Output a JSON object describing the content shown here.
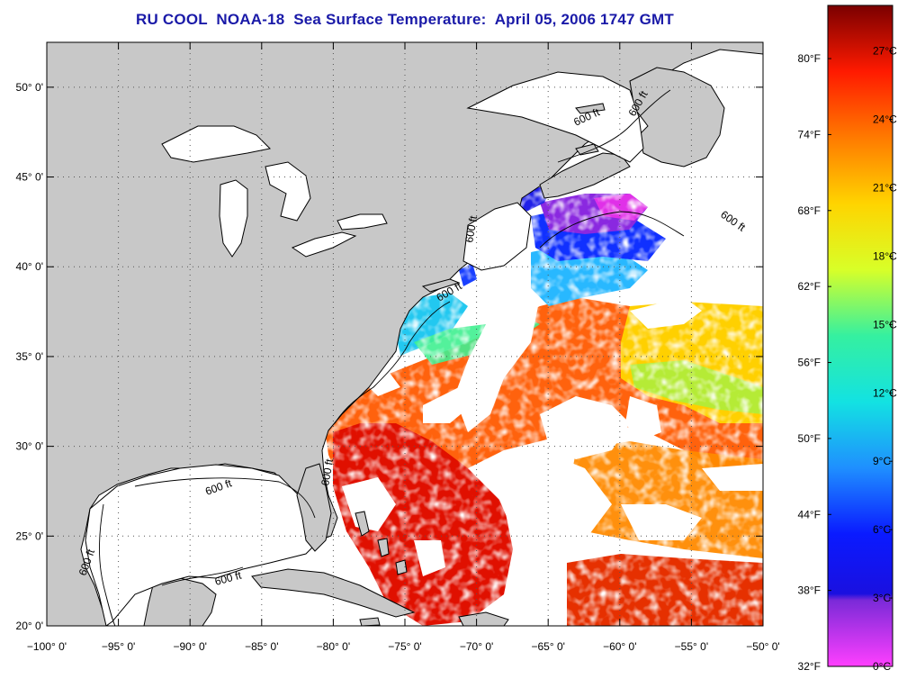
{
  "title": "RU COOL  NOAA-18  Sea Surface Temperature:  April 05, 2006 1747 GMT",
  "map": {
    "lon_range": [
      -100,
      -50
    ],
    "lat_range": [
      20,
      52.5
    ],
    "lon_ticks": [
      {
        "lon": -100,
        "label": "−100° 0'"
      },
      {
        "lon": -95,
        "label": "−95° 0'"
      },
      {
        "lon": -90,
        "label": "−90° 0'"
      },
      {
        "lon": -85,
        "label": "−85° 0'"
      },
      {
        "lon": -80,
        "label": "−80° 0'"
      },
      {
        "lon": -75,
        "label": "−75° 0'"
      },
      {
        "lon": -70,
        "label": "−70° 0'"
      },
      {
        "lon": -65,
        "label": "−65° 0'"
      },
      {
        "lon": -60,
        "label": "−60° 0'"
      },
      {
        "lon": -55,
        "label": "−55° 0'"
      },
      {
        "lon": -50,
        "label": "−50° 0'"
      }
    ],
    "lat_ticks": [
      {
        "lat": 20,
        "label": "20° 0'"
      },
      {
        "lat": 25,
        "label": "25° 0'"
      },
      {
        "lat": 30,
        "label": "30° 0'"
      },
      {
        "lat": 35,
        "label": "35° 0'"
      },
      {
        "lat": 40,
        "label": "40° 0'"
      },
      {
        "lat": 45,
        "label": "45° 0'"
      },
      {
        "lat": 50,
        "label": "50° 0'"
      }
    ],
    "colors": {
      "land": "#c8c8c8",
      "cloud": "#ffffff",
      "grid": "#555555",
      "coast": "#000000"
    },
    "isobath_label": "600 ft"
  },
  "colorbar": {
    "celsius": [
      "0°C",
      "3°C",
      "6°C",
      "9°C",
      "12°C",
      "15°C",
      "18°C",
      "21°C",
      "24°C",
      "27°C"
    ],
    "fahrenheit": [
      "32°F",
      "38°F",
      "44°F",
      "50°F",
      "56°F",
      "62°F",
      "68°F",
      "74°F",
      "80°F"
    ],
    "c_range": [
      0,
      29
    ],
    "stops": [
      {
        "t": 0.0,
        "color": "#ff3fff"
      },
      {
        "t": 0.1,
        "color": "#7a2ad8"
      },
      {
        "t": 0.11,
        "color": "#1a10e0"
      },
      {
        "t": 0.2,
        "color": "#0a1aff"
      },
      {
        "t": 0.3,
        "color": "#1f8fff"
      },
      {
        "t": 0.4,
        "color": "#13e2e2"
      },
      {
        "t": 0.5,
        "color": "#35f0a0"
      },
      {
        "t": 0.6,
        "color": "#d8ff28"
      },
      {
        "t": 0.7,
        "color": "#ffd400"
      },
      {
        "t": 0.8,
        "color": "#ff7a00"
      },
      {
        "t": 0.9,
        "color": "#ff1a00"
      },
      {
        "t": 1.0,
        "color": "#7a0000"
      }
    ]
  }
}
